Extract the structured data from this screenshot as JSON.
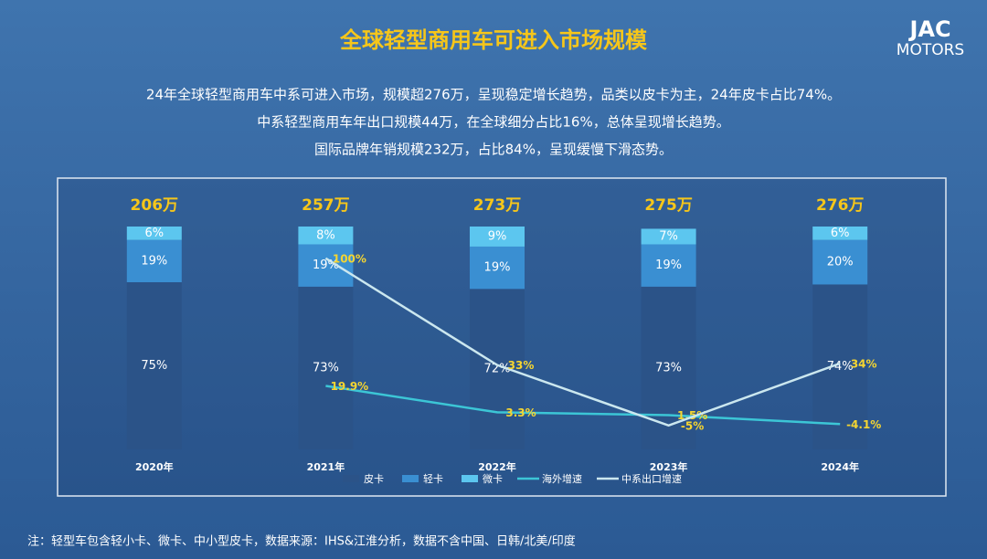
{
  "header": {
    "title": "全球轻型商用车可进入市场规模",
    "logo_top": "JAC",
    "logo_bottom": "MOTORS"
  },
  "summary": [
    "24年全球轻型商用车中系可进入市场，规模超276万，呈现稳定增长趋势，品类以皮卡为主，24年皮卡占比74%。",
    "中系轻型商用车年出口规模44万，在全球细分占比16%，总体呈现增长趋势。",
    "国际品牌年销规模232万，占比84%，呈现缓慢下滑态势。"
  ],
  "chart_data": {
    "type": "bar",
    "stacked": true,
    "categories": [
      "2020年",
      "2021年",
      "2022年",
      "2023年",
      "2024年"
    ],
    "ylim": [
      0,
      100
    ],
    "y2lim": [
      -20,
      120
    ],
    "totals": {
      "values": [
        206,
        257,
        273,
        275,
        276
      ],
      "value_labels": [
        "206万",
        "257万",
        "273万",
        "275万",
        "276万"
      ]
    },
    "series": [
      {
        "name": "皮卡",
        "type": "bar",
        "color": "#2b5388",
        "values": [
          75,
          73,
          72,
          73,
          74
        ],
        "value_labels": [
          "75%",
          "73%",
          "72%",
          "73%",
          "74%"
        ]
      },
      {
        "name": "轻卡",
        "type": "bar",
        "color": "#3a8fd2",
        "values": [
          19,
          19,
          19,
          19,
          20
        ],
        "value_labels": [
          "19%",
          "19%",
          "19%",
          "19%",
          "20%"
        ]
      },
      {
        "name": "微卡",
        "type": "bar",
        "color": "#5cc6ef",
        "values": [
          6,
          8,
          9,
          7,
          6
        ],
        "value_labels": [
          "6%",
          "8%",
          "9%",
          "7%",
          "6%"
        ]
      },
      {
        "name": "海外增速",
        "type": "line",
        "axis": "y2",
        "color": "#3cc6d6",
        "values": [
          null,
          19.9,
          3.3,
          1.5,
          -4.1
        ],
        "value_labels": [
          null,
          "19.9%",
          "3.3%",
          "1.5%",
          "-4.1%"
        ]
      },
      {
        "name": "中系出口增速",
        "type": "line",
        "axis": "y2",
        "color": "#cbe7ef",
        "values": [
          null,
          100,
          33,
          -5,
          34
        ],
        "value_labels": [
          null,
          "100%",
          "33%",
          "-5%",
          "34%"
        ]
      }
    ]
  },
  "footnote": "注：轻型车包含轻小卡、微卡、中小型皮卡，数据来源：IHS&江淮分析，数据不含中国、日韩/北美/印度"
}
